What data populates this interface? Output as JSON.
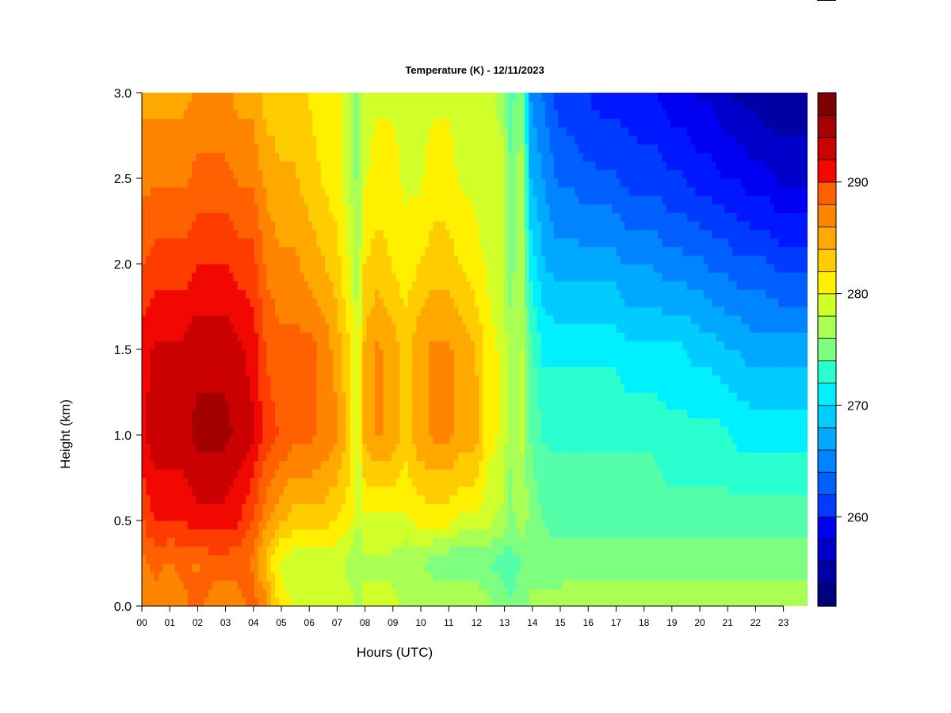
{
  "chart_data": {
    "type": "heatmap",
    "title": "Temperature (K) - 12/11/2023",
    "xlabel": "Hours (UTC)",
    "ylabel": "Height (km)",
    "x_tick_labels": [
      "00",
      "01",
      "02",
      "03",
      "04",
      "05",
      "06",
      "07",
      "08",
      "09",
      "10",
      "11",
      "12",
      "13",
      "14",
      "15",
      "16",
      "17",
      "18",
      "19",
      "20",
      "21",
      "22",
      "23"
    ],
    "y_tick_labels": [
      "0.0",
      "0.5",
      "1.0",
      "1.5",
      "2.0",
      "2.5",
      "3.0"
    ],
    "xlim": [
      0,
      24
    ],
    "ylim": [
      0.0,
      3.0
    ],
    "colorbar": {
      "tick_labels": [
        "260",
        "270",
        "280",
        "290"
      ],
      "range": [
        252,
        298
      ],
      "levels": 23,
      "colors": [
        "#00007f",
        "#0000a5",
        "#0000cb",
        "#0000f1",
        "#0018ff",
        "#003cff",
        "#0060ff",
        "#0084ff",
        "#00a8ff",
        "#00ccff",
        "#00f0ff",
        "#2affd0",
        "#55ffaa",
        "#7fff80",
        "#aaff55",
        "#d0ff2a",
        "#fff000",
        "#ffcc00",
        "#ffa800",
        "#ff8400",
        "#ff6000",
        "#ff3c00",
        "#f10800",
        "#cb0000",
        "#a50000",
        "#7f0000"
      ]
    },
    "heights_km": [
      0.05,
      0.25,
      0.5,
      1.0,
      1.5,
      2.0,
      2.5,
      3.0
    ],
    "columns": [
      {
        "hour": 0.0,
        "temps": [
          286,
          287,
          289,
          292,
          292,
          289,
          287,
          285
        ]
      },
      {
        "hour": 0.5,
        "temps": [
          287,
          288,
          291,
          294,
          293,
          290,
          287,
          285
        ]
      },
      {
        "hour": 1.0,
        "temps": [
          286,
          287,
          291,
          294,
          293,
          290,
          287,
          285
        ]
      },
      {
        "hour": 1.5,
        "temps": [
          287,
          288,
          291,
          294,
          293,
          290,
          287,
          285
        ]
      },
      {
        "hour": 2.0,
        "temps": [
          288,
          287,
          292,
          295,
          294,
          291,
          288,
          286
        ]
      },
      {
        "hour": 2.5,
        "temps": [
          287,
          288,
          292,
          295,
          294,
          291,
          288,
          286
        ]
      },
      {
        "hour": 3.0,
        "temps": [
          287,
          288,
          292,
          295,
          294,
          291,
          288,
          286
        ]
      },
      {
        "hour": 3.5,
        "temps": [
          287,
          288,
          291,
          294,
          293,
          290,
          287,
          285
        ]
      },
      {
        "hour": 4.0,
        "temps": [
          288,
          287,
          289,
          293,
          292,
          290,
          287,
          285
        ]
      },
      {
        "hour": 4.5,
        "temps": [
          286,
          283,
          286,
          290,
          289,
          287,
          285,
          283
        ]
      },
      {
        "hour": 5.0,
        "temps": [
          281,
          280,
          284,
          289,
          288,
          286,
          284,
          283
        ]
      },
      {
        "hour": 5.5,
        "temps": [
          280,
          279,
          283,
          288,
          288,
          286,
          284,
          283
        ]
      },
      {
        "hour": 6.0,
        "temps": [
          280,
          279,
          283,
          288,
          288,
          285,
          283,
          282
        ]
      },
      {
        "hour": 6.5,
        "temps": [
          280,
          279,
          283,
          287,
          287,
          284,
          282,
          281
        ]
      },
      {
        "hour": 7.0,
        "temps": [
          280,
          279,
          282,
          286,
          285,
          283,
          281,
          281
        ]
      },
      {
        "hour": 7.5,
        "temps": [
          279,
          278,
          281,
          283,
          282,
          280,
          279,
          279
        ]
      },
      {
        "hour": 7.8,
        "temps": [
          278,
          277,
          278,
          279,
          279,
          277,
          276,
          275
        ]
      },
      {
        "hour": 8.0,
        "temps": [
          279,
          278,
          280,
          284,
          284,
          282,
          280,
          280
        ]
      },
      {
        "hour": 8.5,
        "temps": [
          279,
          278,
          280,
          286,
          286,
          283,
          281,
          280
        ]
      },
      {
        "hour": 9.0,
        "temps": [
          279,
          278,
          280,
          285,
          285,
          282,
          281,
          280
        ]
      },
      {
        "hour": 9.5,
        "temps": [
          278,
          277,
          280,
          283,
          283,
          281,
          280,
          280
        ]
      },
      {
        "hour": 10.0,
        "temps": [
          278,
          277,
          281,
          285,
          285,
          282,
          280,
          280
        ]
      },
      {
        "hour": 10.5,
        "temps": [
          278,
          276,
          281,
          286,
          286,
          283,
          281,
          280
        ]
      },
      {
        "hour": 11.0,
        "temps": [
          278,
          275,
          281,
          286,
          286,
          283,
          281,
          280
        ]
      },
      {
        "hour": 11.5,
        "temps": [
          278,
          275,
          280,
          285,
          285,
          282,
          280,
          280
        ]
      },
      {
        "hour": 12.0,
        "temps": [
          278,
          275,
          280,
          285,
          284,
          281,
          280,
          279
        ]
      },
      {
        "hour": 12.5,
        "temps": [
          277,
          275,
          279,
          281,
          281,
          280,
          279,
          279
        ]
      },
      {
        "hour": 13.0,
        "temps": [
          276,
          274,
          278,
          280,
          280,
          279,
          279,
          278
        ]
      },
      {
        "hour": 13.3,
        "temps": [
          275,
          274,
          276,
          277,
          277,
          276,
          275,
          274
        ]
      },
      {
        "hour": 13.7,
        "temps": [
          276,
          275,
          278,
          279,
          279,
          278,
          278,
          277
        ]
      },
      {
        "hour": 14.0,
        "temps": [
          277,
          276,
          276,
          275,
          274,
          271,
          268,
          266
        ]
      },
      {
        "hour": 14.5,
        "temps": [
          277,
          276,
          275,
          273,
          271,
          268,
          266,
          264
        ]
      },
      {
        "hour": 15.0,
        "temps": [
          277,
          276,
          274,
          273,
          271,
          267,
          264,
          262
        ]
      },
      {
        "hour": 15.5,
        "temps": [
          278,
          276,
          274,
          273,
          271,
          267,
          264,
          261
        ]
      },
      {
        "hour": 16.0,
        "temps": [
          278,
          276,
          274,
          273,
          271,
          267,
          263,
          261
        ]
      },
      {
        "hour": 16.5,
        "temps": [
          278,
          276,
          274,
          273,
          271,
          267,
          263,
          260
        ]
      },
      {
        "hour": 17.0,
        "temps": [
          278,
          276,
          274,
          273,
          271,
          267,
          263,
          260
        ]
      },
      {
        "hour": 17.5,
        "temps": [
          278,
          276,
          274,
          273,
          270,
          266,
          262,
          260
        ]
      },
      {
        "hour": 18.0,
        "temps": [
          278,
          276,
          274,
          273,
          270,
          266,
          262,
          259
        ]
      },
      {
        "hour": 18.5,
        "temps": [
          278,
          276,
          274,
          273,
          270,
          266,
          262,
          259
        ]
      },
      {
        "hour": 19.0,
        "temps": [
          278,
          276,
          274,
          272,
          270,
          265,
          261,
          258
        ]
      },
      {
        "hour": 19.5,
        "temps": [
          278,
          276,
          274,
          272,
          270,
          265,
          261,
          258
        ]
      },
      {
        "hour": 20.0,
        "temps": [
          278,
          276,
          274,
          272,
          269,
          265,
          260,
          257
        ]
      },
      {
        "hour": 20.5,
        "temps": [
          278,
          276,
          274,
          272,
          269,
          264,
          260,
          257
        ]
      },
      {
        "hour": 21.0,
        "temps": [
          278,
          276,
          274,
          272,
          268,
          264,
          259,
          256
        ]
      },
      {
        "hour": 21.5,
        "temps": [
          278,
          276,
          274,
          271,
          268,
          263,
          259,
          255
        ]
      },
      {
        "hour": 22.0,
        "temps": [
          278,
          276,
          274,
          271,
          267,
          263,
          258,
          255
        ]
      },
      {
        "hour": 22.5,
        "temps": [
          278,
          276,
          274,
          271,
          267,
          263,
          258,
          254
        ]
      },
      {
        "hour": 23.0,
        "temps": [
          278,
          276,
          274,
          271,
          267,
          262,
          257,
          254
        ]
      },
      {
        "hour": 23.5,
        "temps": [
          278,
          276,
          274,
          271,
          267,
          262,
          257,
          254
        ]
      },
      {
        "hour": 24.0,
        "temps": [
          278,
          276,
          274,
          271,
          267,
          262,
          257,
          254
        ]
      }
    ]
  }
}
